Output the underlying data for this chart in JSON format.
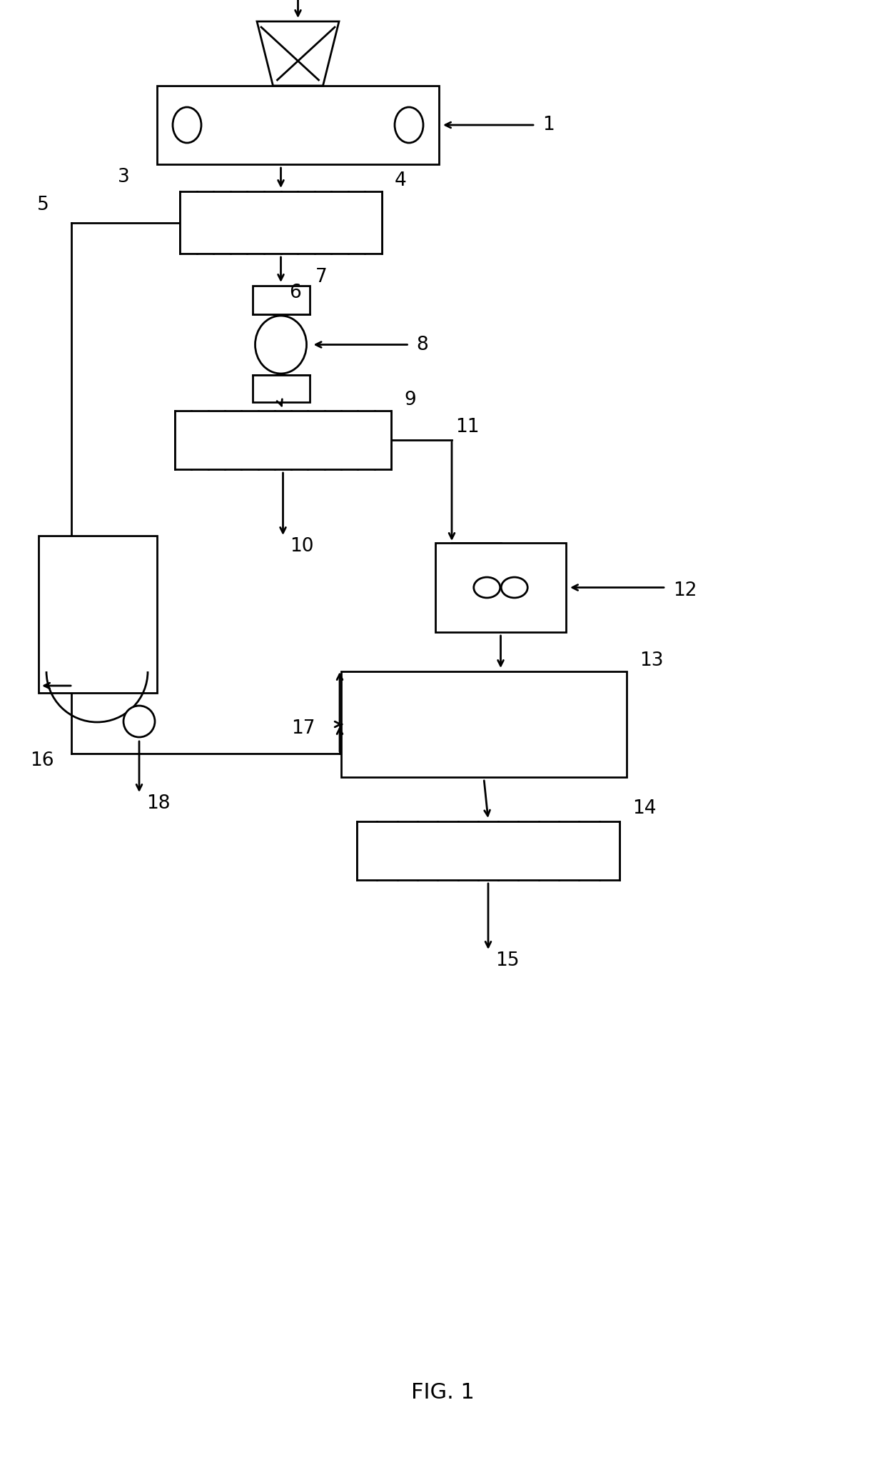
{
  "bg_color": "#ffffff",
  "lc": "#000000",
  "lw": 2.0,
  "fig_width": 12.4,
  "fig_height": 20.65,
  "caption": "FIG. 1",
  "label_fs": 19
}
